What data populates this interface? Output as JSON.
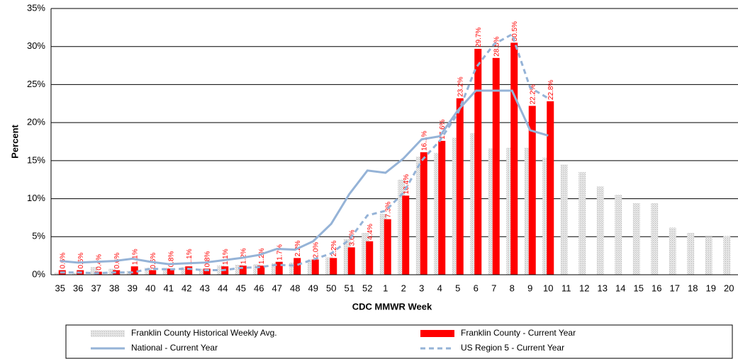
{
  "chart_data": {
    "type": "bar",
    "x_label": "CDC MMWR Week",
    "y_label": "Percent",
    "categories": [
      "35",
      "36",
      "37",
      "38",
      "39",
      "40",
      "41",
      "42",
      "43",
      "44",
      "45",
      "46",
      "47",
      "48",
      "49",
      "50",
      "51",
      "52",
      "1",
      "2",
      "3",
      "4",
      "5",
      "6",
      "7",
      "8",
      "9",
      "10",
      "11",
      "12",
      "13",
      "14",
      "15",
      "16",
      "17",
      "18",
      "19",
      "20"
    ],
    "ylim": [
      0,
      35
    ],
    "yticks": [
      {
        "value": 0,
        "label": "0%"
      },
      {
        "value": 5,
        "label": "5%"
      },
      {
        "value": 10,
        "label": "10%"
      },
      {
        "value": 15,
        "label": "15%"
      },
      {
        "value": 20,
        "label": "20%"
      },
      {
        "value": 25,
        "label": "25%"
      },
      {
        "value": 30,
        "label": "30%"
      },
      {
        "value": 35,
        "label": "35%"
      }
    ],
    "grid": true,
    "series": [
      {
        "name": "Franklin County Historical Weekly Avg.",
        "kind": "bar",
        "color": "#d0d0d0",
        "values": [
          0.3,
          0.3,
          1.0,
          0.8,
          0.5,
          0.9,
          0.9,
          1.0,
          0.8,
          1.2,
          1.3,
          1.4,
          1.5,
          1.6,
          2.0,
          2.3,
          4.7,
          5.5,
          8.0,
          12.5,
          15.5,
          16.0,
          18.0,
          18.6,
          16.6,
          16.7,
          16.7,
          15.4,
          14.5,
          13.5,
          11.6,
          10.5,
          9.4,
          9.4,
          6.2,
          5.5,
          5.0,
          5.1
        ]
      },
      {
        "name": "Franklin County - Current Year",
        "kind": "bar",
        "color": "#ff0000",
        "values": [
          0.6,
          0.6,
          0.4,
          0.6,
          1.1,
          0.6,
          0.8,
          1.1,
          0.8,
          1.1,
          1.2,
          1.2,
          1.7,
          2.2,
          2.0,
          2.2,
          3.6,
          4.4,
          7.3,
          10.4,
          16.1,
          17.6,
          23.2,
          29.7,
          28.5,
          30.5,
          22.2,
          22.8,
          null,
          null,
          null,
          null,
          null,
          null,
          null,
          null,
          null,
          null
        ],
        "value_labels": [
          "0.6%",
          "0.6%",
          "0.4%",
          "0.6%",
          "1.1%",
          "0.6%",
          "0.8%",
          "1.1%",
          "0.8%",
          "1.1%",
          "1.2%",
          "1.2%",
          "1.7%",
          "2.2%",
          "2.0%",
          "2.2%",
          "3.6%",
          "4.4%",
          "7.3%",
          "10.4%",
          "16.1%",
          "17.6%",
          "23.2%",
          "29.7%",
          "28.5%",
          "30.5%",
          "22.2%",
          "22.8%",
          null,
          null,
          null,
          null,
          null,
          null,
          null,
          null,
          null,
          null
        ]
      },
      {
        "name": "National - Current Year",
        "kind": "line",
        "dashed": false,
        "color": "#95b3d7",
        "values": [
          1.8,
          1.6,
          1.7,
          1.8,
          2.1,
          1.7,
          1.4,
          1.5,
          1.6,
          1.9,
          2.2,
          2.6,
          3.4,
          3.3,
          4.4,
          6.7,
          10.6,
          13.7,
          13.4,
          15.3,
          17.8,
          18.2,
          21.6,
          24.2,
          24.2,
          24.2,
          19.0,
          18.3,
          null,
          null,
          null,
          null,
          null,
          null,
          null,
          null,
          null,
          null
        ]
      },
      {
        "name": "US Region 5 - Current Year",
        "kind": "line",
        "dashed": true,
        "color": "#95b3d7",
        "values": [
          0.3,
          0.3,
          0.2,
          0.3,
          0.3,
          0.8,
          0.7,
          0.8,
          0.6,
          0.6,
          0.9,
          1.0,
          1.3,
          1.2,
          2.0,
          2.8,
          4.6,
          7.8,
          8.4,
          10.8,
          15.0,
          17.6,
          21.2,
          27.2,
          30.3,
          31.6,
          24.6,
          23.2,
          null,
          null,
          null,
          null,
          null,
          null,
          null,
          null,
          null,
          null
        ]
      }
    ]
  }
}
